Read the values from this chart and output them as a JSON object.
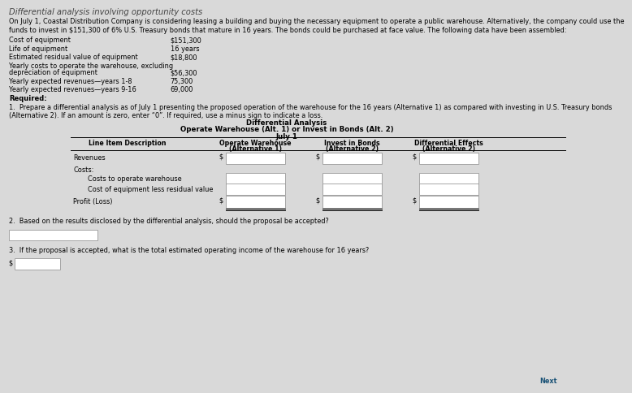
{
  "title": "Differential analysis involving opportunity costs",
  "intro_line1": "On July 1, Coastal Distribution Company is considering leasing a building and buying the necessary equipment to operate a public warehouse. Alternatively, the company could use the",
  "intro_line2": "funds to invest in $151,300 of 6% U.S. Treasury bonds that mature in 16 years. The bonds could be purchased at face value. The following data have been assembled:",
  "given_data": [
    [
      "Cost of equipment",
      "$151,300"
    ],
    [
      "Life of equipment",
      "16 years"
    ],
    [
      "Estimated residual value of equipment",
      "$18,800"
    ],
    [
      "Yearly costs to operate the warehouse, excluding",
      ""
    ],
    [
      "depreciation of equipment",
      "$56,300"
    ],
    [
      "Yearly expected revenues—years 1-8",
      "75,300"
    ],
    [
      "Yearly expected revenues—years 9-16",
      "69,000"
    ]
  ],
  "required_label": "Required:",
  "req1_line1": "1.  Prepare a differential analysis as of July 1 presenting the proposed operation of the warehouse for the 16 years (Alternative 1) as compared with investing in U.S. Treasury bonds",
  "req1_line2": "(Alternative 2). If an amount is zero, enter “0”. If required, use a minus sign to indicate a loss.",
  "diff_title1": "Differential Analysis",
  "diff_title2": "Operate Warehouse (Alt. 1) or Invest in Bonds (Alt. 2)",
  "diff_title3": "July 1",
  "col_header_0": "Line Item Description",
  "col_header_1a": "Operate Warehouse",
  "col_header_1b": "(Alternative 1)",
  "col_header_2a": "Invest in Bonds",
  "col_header_2b": "(Alternative 2)",
  "col_header_3a": "Differential Effects",
  "col_header_3b": "(Alternative 2)",
  "row_labels": [
    "Revenues",
    "Costs:",
    "Costs to operate warehouse",
    "Cost of equipment less residual value",
    "Profit (Loss)"
  ],
  "req2_text": "2.  Based on the results disclosed by the differential analysis, should the proposal be accepted?",
  "req3_text": "3.  If the proposal is accepted, what is the total estimated operating income of the warehouse for 16 years?",
  "bg_color": "#d9d9d9",
  "box_color": "#ffffff",
  "text_color": "#000000",
  "next_label": "Next"
}
